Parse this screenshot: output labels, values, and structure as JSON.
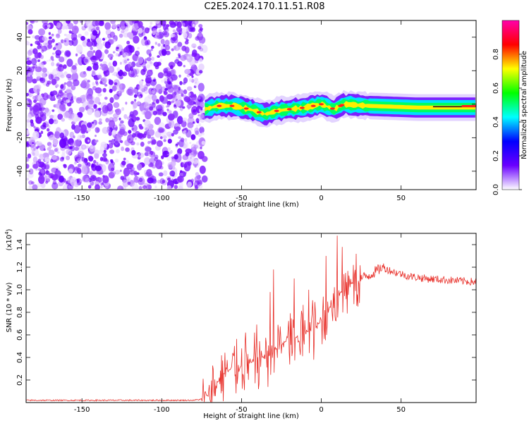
{
  "title": "C2E5.2024.170.11.51.R08",
  "chart_data": [
    {
      "type": "heatmap",
      "title": "",
      "xlabel": "Height of straight line (km)",
      "ylabel": "Frequency (Hz)",
      "xlim": [
        -185,
        97
      ],
      "ylim": [
        -51,
        50
      ],
      "x_ticks": [
        -150,
        -100,
        -50,
        0,
        50
      ],
      "y_ticks": [
        -40,
        -20,
        0,
        20,
        40
      ],
      "noise_region_x": [
        -185,
        -73
      ],
      "signal_track": [
        {
          "x": -73,
          "y": -3
        },
        {
          "x": -65,
          "y": -1
        },
        {
          "x": -55,
          "y": -1
        },
        {
          "x": -45,
          "y": -3
        },
        {
          "x": -35,
          "y": -6
        },
        {
          "x": -28,
          "y": -4
        },
        {
          "x": -20,
          "y": -3
        },
        {
          "x": -10,
          "y": -2
        },
        {
          "x": 0,
          "y": 0
        },
        {
          "x": 8,
          "y": -3
        },
        {
          "x": 14,
          "y": 0
        },
        {
          "x": 30,
          "y": -1
        },
        {
          "x": 60,
          "y": -2
        },
        {
          "x": 97,
          "y": -2
        }
      ],
      "colorbar": {
        "label": "Normalized spectral amplitude",
        "ticks": [
          "0.0",
          "0.2",
          "0.4",
          "0.6",
          "0.8"
        ],
        "range": [
          0,
          1
        ],
        "colors": [
          "#ffffff",
          "#6a00ff",
          "#0000ff",
          "#00ffff",
          "#00ff00",
          "#ffff00",
          "#ff0000",
          "#ff00aa"
        ]
      }
    },
    {
      "type": "line",
      "title": "",
      "xlabel": "Height of straight line (km)",
      "ylabel": "SNR (10 * v/v)",
      "y_multiplier": "(x10",
      "y_multiplier_exp": "4",
      "y_multiplier_close": ")",
      "xlim": [
        -185,
        97
      ],
      "ylim": [
        0,
        1.5
      ],
      "x_ticks": [
        -150,
        -100,
        -50,
        0,
        50
      ],
      "y_ticks": [
        "0.2",
        "0.4",
        "0.6",
        "0.8",
        "1.0",
        "1.2",
        "1.4"
      ],
      "color": "#e8302a",
      "series": [
        {
          "x": [
            -185,
            -150,
            -100,
            -80,
            -75,
            -70,
            -65,
            -60,
            -55,
            -50,
            -45,
            -40,
            -35,
            -30,
            -25,
            -20,
            -15,
            -10,
            -5,
            0,
            5,
            10,
            15,
            20,
            25,
            30,
            35,
            38,
            45,
            55,
            65,
            75,
            85,
            97
          ],
          "y": [
            0.02,
            0.02,
            0.02,
            0.02,
            0.03,
            0.08,
            0.18,
            0.28,
            0.3,
            0.32,
            0.35,
            0.38,
            0.42,
            0.46,
            0.52,
            0.56,
            0.58,
            0.62,
            0.66,
            0.72,
            0.84,
            0.95,
            1.02,
            1.07,
            1.1,
            1.13,
            1.17,
            1.2,
            1.16,
            1.12,
            1.1,
            1.09,
            1.08,
            1.07
          ]
        }
      ],
      "spikes": [
        {
          "x": -50,
          "y": 0.48
        },
        {
          "x": -42,
          "y": 0.62
        },
        {
          "x": -32,
          "y": 0.98
        },
        {
          "x": -30,
          "y": 1.18
        },
        {
          "x": -17,
          "y": 1.1
        },
        {
          "x": -8,
          "y": 1.0
        },
        {
          "x": 3,
          "y": 1.3
        },
        {
          "x": 10,
          "y": 1.48
        },
        {
          "x": 13,
          "y": 1.38
        },
        {
          "x": 20,
          "y": 1.22
        }
      ]
    }
  ]
}
